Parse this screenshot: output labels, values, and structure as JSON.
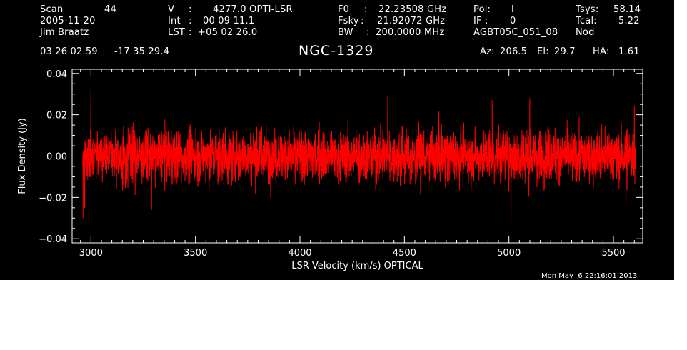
{
  "header": {
    "scan_label": "Scan",
    "scan_value": "44",
    "date": "2005-11-20",
    "observer": "Jim Braatz",
    "v_label": "V",
    "v_value": "4277.0 OPTI-LSR",
    "int_label": "Int",
    "int_value": "00 09 11.1",
    "lst_label": "LST",
    "lst_value": "+05 02 26.0",
    "f0_label": "F0",
    "f0_value": "22.23508 GHz",
    "fsky_label": "Fsky",
    "fsky_value": "21.92072 GHz",
    "bw_label": "BW",
    "bw_value": "200.0000 MHz",
    "pol_label": "Pol:",
    "pol_value": "I",
    "if_label": "IF :",
    "if_value": "0",
    "project": "AGBT05C_051_08",
    "tsys_label": "Tsys:",
    "tsys_value": "58.14",
    "tcal_label": "Tcal:",
    "tcal_value": "5.22",
    "mode": "Nod",
    "ra": "03 26 02.59",
    "dec": "-17 35 29.4",
    "source": "NGC-1329",
    "az_label": "Az:",
    "az_value": "206.5",
    "el_label": "El:",
    "el_value": "29.7",
    "ha_label": "HA:",
    "ha_value": "1.61"
  },
  "timestamp": "Mon May  6 22:16:01 2013",
  "colors": {
    "background": "#000000",
    "axes": "#ffffff",
    "trace": "#ff0000"
  },
  "chart_data": {
    "type": "line",
    "title": "NGC-1329",
    "xlabel": "LSR Velocity (km/s) OPTICAL",
    "ylabel": "Flux Density (Jy)",
    "xlim": [
      2910,
      5640
    ],
    "ylim": [
      -0.042,
      0.042
    ],
    "x_ticks": [
      3000,
      3500,
      4000,
      4500,
      5000,
      5500
    ],
    "x_tick_labels": [
      "3000",
      "3500",
      "4000",
      "4500",
      "5000",
      "5500"
    ],
    "y_ticks": [
      -0.04,
      -0.02,
      0.0,
      0.02,
      0.04
    ],
    "y_tick_labels": [
      "−0.04",
      "−0.02",
      "0.00",
      "0.02",
      "0.04"
    ],
    "grid": false,
    "series": [
      {
        "x_start": 2960,
        "x_end": 5605,
        "noise_rms_jy": 0.009,
        "features": [
          {
            "x": 2962,
            "y": -0.03
          },
          {
            "x": 2970,
            "y": -0.025
          },
          {
            "x": 3000,
            "y": 0.032
          },
          {
            "x": 3290,
            "y": -0.026
          },
          {
            "x": 4420,
            "y": 0.029
          },
          {
            "x": 4920,
            "y": 0.027
          },
          {
            "x": 5010,
            "y": -0.036
          },
          {
            "x": 5100,
            "y": 0.028
          },
          {
            "x": 5560,
            "y": -0.023
          },
          {
            "x": 5600,
            "y": 0.024
          }
        ]
      }
    ]
  }
}
